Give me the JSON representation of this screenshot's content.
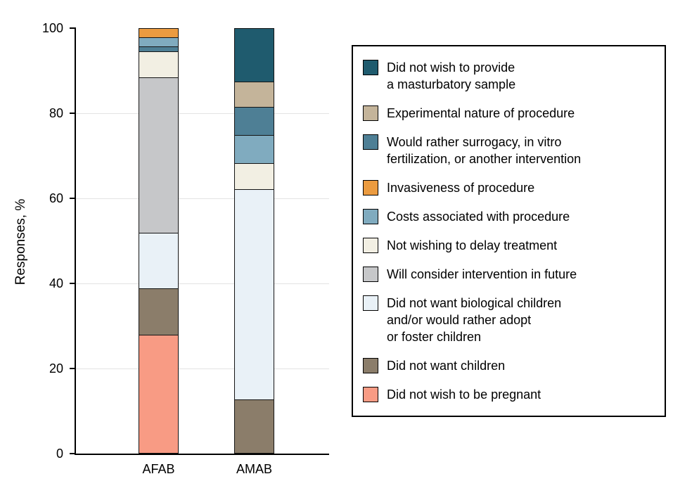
{
  "chart_data": {
    "type": "bar",
    "stacked": true,
    "title": "",
    "xlabel": "",
    "ylabel": "Responses, %",
    "ylim": [
      0,
      100
    ],
    "yticks": [
      0,
      20,
      40,
      60,
      80,
      100
    ],
    "gridlines": [
      20,
      40,
      60,
      80
    ],
    "categories": [
      "AFAB",
      "AMAB"
    ],
    "bars": [
      {
        "category": "AFAB",
        "segments": [
          {
            "name": "Did not wish to be pregnant",
            "color": "#f89b84",
            "value": 28
          },
          {
            "name": "Did not want children",
            "color": "#8b7d6a",
            "value": 11
          },
          {
            "name": "Did not want biological children and/or would rather adopt or foster children",
            "color": "#e9f1f7",
            "value": 13
          },
          {
            "name": "Will consider intervention in future",
            "color": "#c6c7c9",
            "value": 37
          },
          {
            "name": "Not wishing to delay treatment",
            "color": "#f2efe3",
            "value": 6
          },
          {
            "name": "Would rather surrogacy, in vitro fertilization, or another intervention",
            "color": "#4e7f95",
            "value": 1
          },
          {
            "name": "Costs associated with procedure",
            "color": "#80abbf",
            "value": 2
          },
          {
            "name": "Invasiveness of procedure",
            "color": "#eb9b40",
            "value": 2
          }
        ]
      },
      {
        "category": "AMAB",
        "segments": [
          {
            "name": "Did not want children",
            "color": "#8b7d6a",
            "value": 12.5
          },
          {
            "name": "Did not want biological children and/or would rather adopt or foster children",
            "color": "#e9f1f7",
            "value": 50
          },
          {
            "name": "Not wishing to delay treatment",
            "color": "#f2efe3",
            "value": 6
          },
          {
            "name": "Costs associated with procedure",
            "color": "#80abbf",
            "value": 6.5
          },
          {
            "name": "Would rather surrogacy, in vitro fertilization, or another intervention",
            "color": "#4e7f95",
            "value": 6.5
          },
          {
            "name": "Experimental nature of procedure",
            "color": "#c4b49a",
            "value": 6
          },
          {
            "name": "Did not wish to provide a masturbatory sample",
            "color": "#1f5b6e",
            "value": 12.5
          }
        ]
      }
    ]
  },
  "legend": {
    "items": [
      {
        "label": "Did not wish to provide\na masturbatory sample",
        "color": "#1f5b6e"
      },
      {
        "label": "Experimental nature of procedure",
        "color": "#c4b49a"
      },
      {
        "label": "Would rather surrogacy, in vitro\nfertilization, or another intervention",
        "color": "#4e7f95"
      },
      {
        "label": "Invasiveness of procedure",
        "color": "#eb9b40"
      },
      {
        "label": "Costs associated with procedure",
        "color": "#80abbf"
      },
      {
        "label": "Not wishing to delay treatment",
        "color": "#f2efe3"
      },
      {
        "label": "Will consider intervention in future",
        "color": "#c6c7c9"
      },
      {
        "label": "Did not want biological children\nand/or would rather adopt\nor foster children",
        "color": "#e9f1f7"
      },
      {
        "label": "Did not want children",
        "color": "#8b7d6a"
      },
      {
        "label": "Did not wish to be pregnant",
        "color": "#f89b84"
      }
    ]
  }
}
